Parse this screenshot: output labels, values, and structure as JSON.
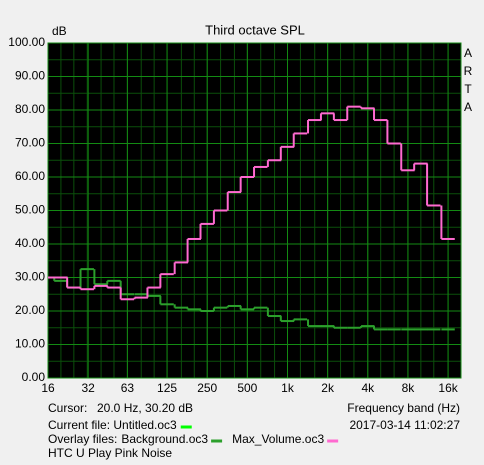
{
  "chart_data": {
    "type": "step",
    "title": "Third octave SPL",
    "y_label": "dB",
    "brand": "ARTA",
    "x_label": "Frequency band (Hz)",
    "cursor_label": "Cursor:",
    "cursor_value": "20.0 Hz, 30.20 dB",
    "current_file_label": "Current file: Untitled.oc3",
    "current_file_color": "#00ff00",
    "overlay_label": "Overlay files:",
    "timestamp": "2017-03-14  11:02:27",
    "note": "HTC U Play Pink Noise",
    "log_x": true,
    "grid": true,
    "xlim": [
      16,
      20000
    ],
    "ylim": [
      0,
      100
    ],
    "xticks": [
      16,
      32,
      63,
      125,
      250,
      500,
      {
        "value": 1000,
        "label": "1k"
      },
      {
        "value": 2000,
        "label": "2k"
      },
      {
        "value": 4000,
        "label": "4k"
      },
      {
        "value": 8000,
        "label": "8k"
      },
      {
        "value": 16000,
        "label": "16k"
      }
    ],
    "yticks": [
      {
        "value": 0,
        "label": "0.00"
      },
      {
        "value": 10,
        "label": "10.00"
      },
      {
        "value": 20,
        "label": "20.00"
      },
      {
        "value": 30,
        "label": "30.00"
      },
      {
        "value": 40,
        "label": "40.00"
      },
      {
        "value": 50,
        "label": "50.00"
      },
      {
        "value": 60,
        "label": "60.00"
      },
      {
        "value": 70,
        "label": "70.00"
      },
      {
        "value": 80,
        "label": "80.00"
      },
      {
        "value": 90,
        "label": "90.00"
      },
      {
        "value": 100,
        "label": "100.00"
      }
    ],
    "x": [
      16,
      20,
      25,
      31.5,
      40,
      50,
      63,
      80,
      100,
      125,
      160,
      200,
      250,
      315,
      400,
      500,
      630,
      800,
      1000,
      1250,
      1600,
      2000,
      2500,
      3150,
      4000,
      5000,
      6300,
      8000,
      10000,
      12500,
      16000
    ],
    "series": [
      {
        "name": "Background.oc3",
        "color": "#2ca02c",
        "values": [
          30,
          29,
          27,
          32.5,
          28,
          29,
          25,
          25,
          24.5,
          22,
          21,
          20.5,
          20,
          21,
          21.5,
          20.5,
          21,
          18.5,
          17,
          17.5,
          15.5,
          15.5,
          15,
          15,
          15.5,
          14.5,
          14.5,
          14.5,
          14.5,
          14.5,
          14.5
        ]
      },
      {
        "name": "Max_Volume.oc3",
        "color": "#ff6ad0",
        "values": [
          30,
          30,
          27,
          26.5,
          27.5,
          27,
          23.5,
          24,
          27,
          31,
          34.5,
          41.5,
          46,
          50,
          55.5,
          60,
          63,
          65,
          69,
          73,
          77,
          79,
          77,
          81,
          80.5,
          77,
          70,
          62,
          64,
          51.5,
          41.5
        ]
      }
    ]
  }
}
